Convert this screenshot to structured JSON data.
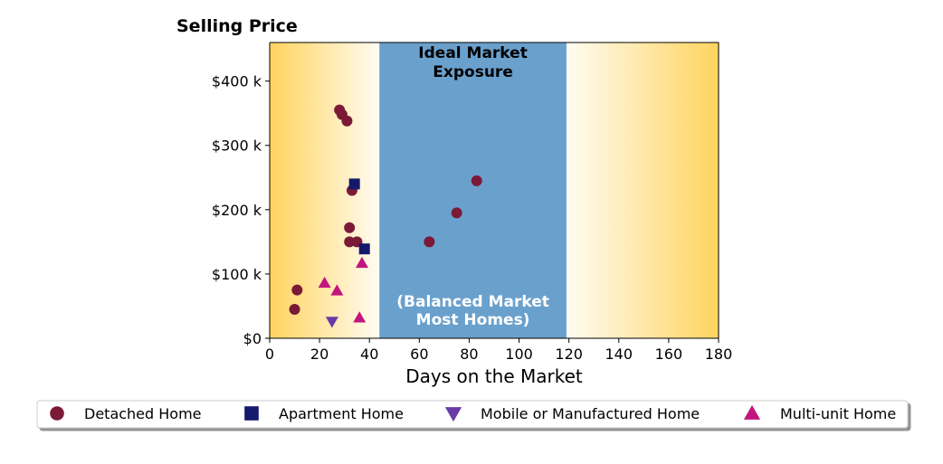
{
  "chart_data": {
    "type": "scatter",
    "title": "Selling Price",
    "xlabel": "Days on the Market",
    "ylabel": "",
    "xlim": [
      0,
      180
    ],
    "ylim": [
      0,
      460000
    ],
    "x_ticks": [
      0,
      20,
      40,
      60,
      80,
      100,
      120,
      140,
      160,
      180
    ],
    "x_tick_labels": [
      "0",
      "20",
      "40",
      "60",
      "80",
      "100",
      "120",
      "140",
      "160",
      "180"
    ],
    "y_ticks": [
      0,
      100000,
      200000,
      300000,
      400000
    ],
    "y_tick_labels": [
      "$0",
      "$100 k",
      "$200 k",
      "$300 k",
      "$400 k"
    ],
    "grid": false,
    "legend_position": "bottom",
    "ideal_band": {
      "x_range": [
        44,
        119
      ],
      "color": "#6aa0cc",
      "title_lines": [
        "Ideal Market",
        "Exposure"
      ],
      "subtitle_lines": [
        "(Balanced Market",
        "Most Homes)"
      ]
    },
    "gradient_color": "#ffd45e",
    "series": [
      {
        "name": "Detached Home",
        "marker": "circle",
        "color": "#7b1a37",
        "points": [
          [
            10,
            45000
          ],
          [
            11,
            75000
          ],
          [
            28,
            355000
          ],
          [
            29,
            348000
          ],
          [
            31,
            338000
          ],
          [
            33,
            230000
          ],
          [
            32,
            172000
          ],
          [
            32,
            150000
          ],
          [
            35,
            150000
          ],
          [
            64,
            150000
          ],
          [
            75,
            195000
          ],
          [
            83,
            245000
          ]
        ]
      },
      {
        "name": "Apartment Home",
        "marker": "square",
        "color": "#14196b",
        "points": [
          [
            34,
            240000
          ],
          [
            38,
            139000
          ]
        ]
      },
      {
        "name": "Mobile or Manufactured Home",
        "marker": "triangle-down",
        "color": "#6b3aa8",
        "points": [
          [
            25,
            26000
          ]
        ]
      },
      {
        "name": "Multi-unit Home",
        "marker": "triangle-up",
        "color": "#c2157e",
        "points": [
          [
            22,
            86000
          ],
          [
            27,
            74000
          ],
          [
            37,
            117000
          ],
          [
            36,
            32000
          ]
        ]
      }
    ]
  }
}
